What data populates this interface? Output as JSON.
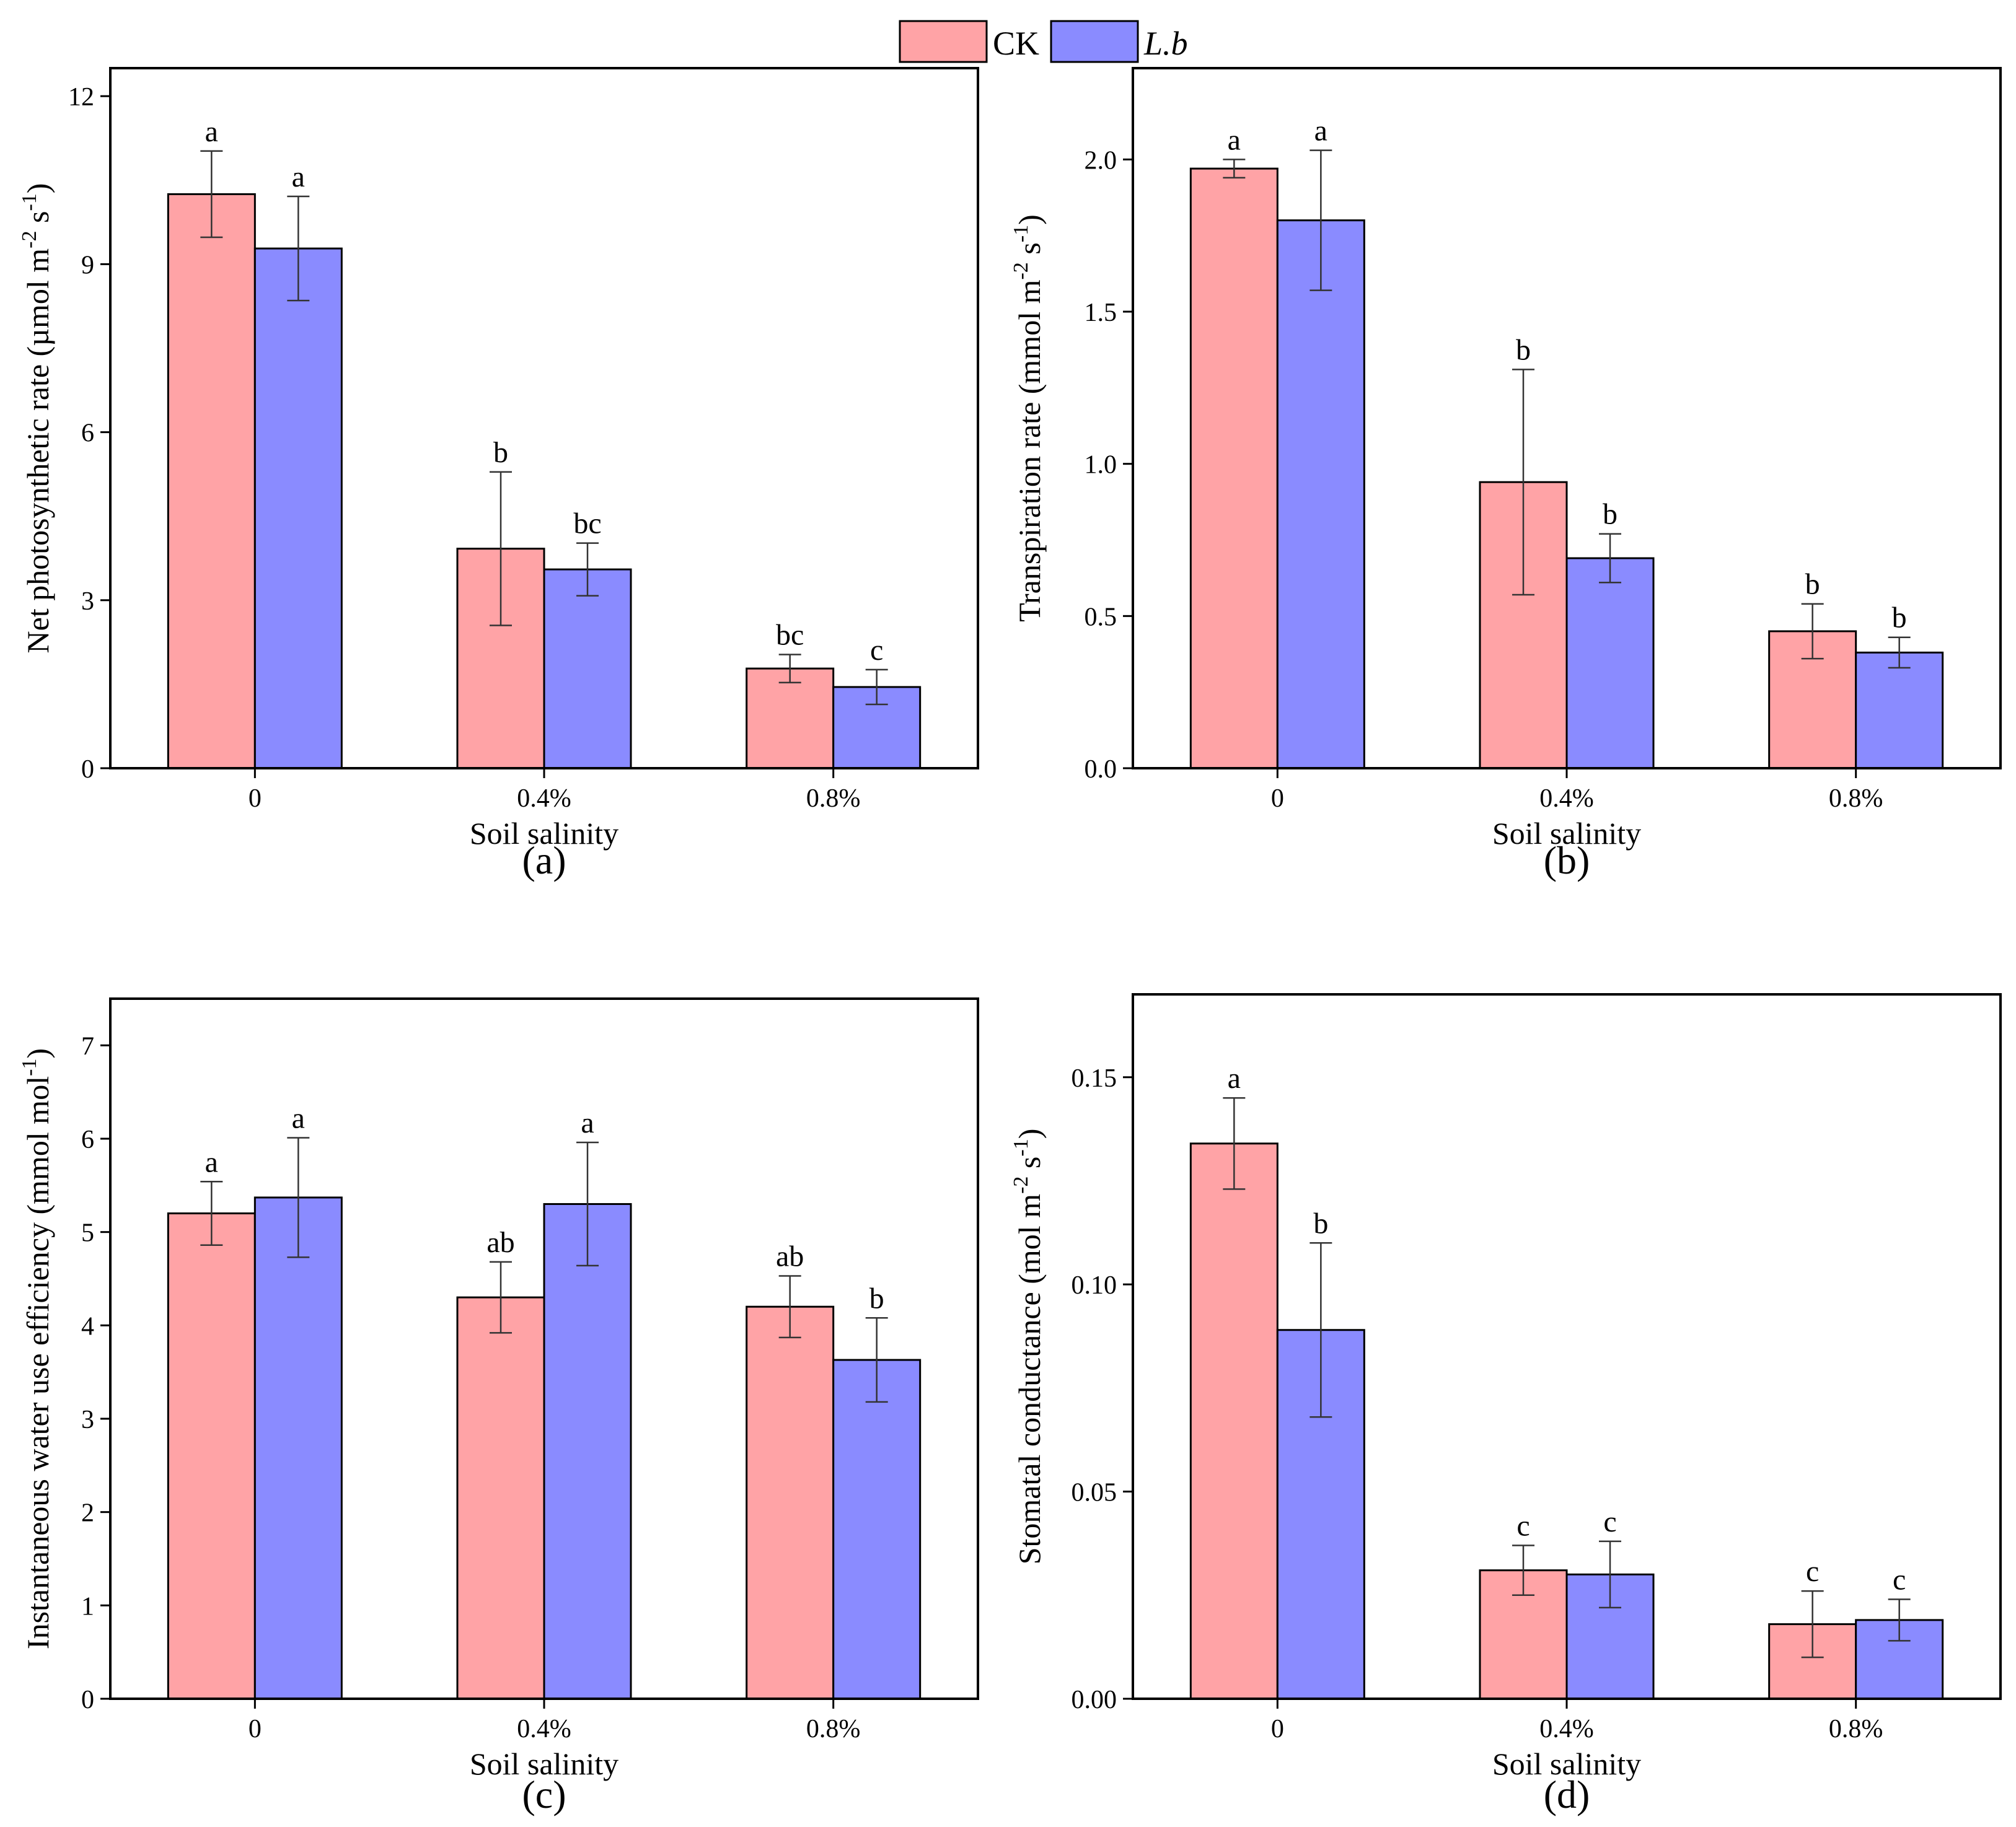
{
  "legend": {
    "entries": [
      {
        "name": "CK",
        "color": "#FFA3A6"
      },
      {
        "name": "L.b",
        "color": "#8A8BFF",
        "italic": true
      }
    ]
  },
  "chart_data": [
    {
      "type": "bar",
      "panel_label": "(a)",
      "xlabel": "Soil salinity",
      "ylabel": "Net photosynthetic rate (µmol m-2 s-1)",
      "ylabel_parts": [
        "Net photosynthetic rate (µmol m",
        "-2",
        " s",
        "-1",
        ")"
      ],
      "categories": [
        "0",
        "0.4%",
        "0.8%"
      ],
      "ylim": [
        0,
        12.5
      ],
      "yticks": [
        0,
        3,
        6,
        9,
        12
      ],
      "ytick_labels": [
        "0",
        "3",
        "6",
        "9",
        "12"
      ],
      "series": [
        {
          "name": "CK",
          "values": [
            10.25,
            3.92,
            1.78
          ],
          "errors": [
            0.77,
            1.37,
            0.25
          ],
          "letters": [
            "a",
            "b",
            "bc"
          ]
        },
        {
          "name": "L.b",
          "values": [
            9.28,
            3.55,
            1.45
          ],
          "errors": [
            0.93,
            0.47,
            0.31
          ],
          "letters": [
            "a",
            "bc",
            "c"
          ]
        }
      ]
    },
    {
      "type": "bar",
      "panel_label": "(b)",
      "xlabel": "Soil salinity",
      "ylabel": "Transpiration rate (mmol m-2 s-1)",
      "ylabel_parts": [
        "Transpiration rate (mmol m",
        "-2",
        " s",
        "-1",
        ")"
      ],
      "categories": [
        "0",
        "0.4%",
        "0.8%"
      ],
      "ylim": [
        0,
        2.3
      ],
      "yticks": [
        0,
        0.5,
        1.0,
        1.5,
        2.0
      ],
      "ytick_labels": [
        "0.0",
        "0.5",
        "1.0",
        "1.5",
        "2.0"
      ],
      "series": [
        {
          "name": "CK",
          "values": [
            1.97,
            0.94,
            0.45
          ],
          "errors": [
            0.03,
            0.37,
            0.09
          ],
          "letters": [
            "a",
            "b",
            "b"
          ]
        },
        {
          "name": "L.b",
          "values": [
            1.8,
            0.69,
            0.38
          ],
          "errors": [
            0.23,
            0.08,
            0.05
          ],
          "letters": [
            "a",
            "b",
            "b"
          ]
        }
      ]
    },
    {
      "type": "bar",
      "panel_label": "(c)",
      "xlabel": "Soil salinity",
      "ylabel": "Instantaneous water use efficiency (mmol mol-1)",
      "ylabel_parts": [
        "Instantaneous water use efficiency (mmol mol",
        "-1",
        ")"
      ],
      "categories": [
        "0",
        "0.4%",
        "0.8%"
      ],
      "ylim": [
        0,
        7.5
      ],
      "yticks": [
        0,
        1,
        2,
        3,
        4,
        5,
        6,
        7
      ],
      "ytick_labels": [
        "0",
        "1",
        "2",
        "3",
        "4",
        "5",
        "6",
        "7"
      ],
      "series": [
        {
          "name": "CK",
          "values": [
            5.2,
            4.3,
            4.2
          ],
          "errors": [
            0.34,
            0.38,
            0.33
          ],
          "letters": [
            "a",
            "ab",
            "ab"
          ]
        },
        {
          "name": "L.b",
          "values": [
            5.37,
            5.3,
            3.63
          ],
          "errors": [
            0.64,
            0.66,
            0.45
          ],
          "letters": [
            "a",
            "a",
            "b"
          ]
        }
      ]
    },
    {
      "type": "bar",
      "panel_label": "(d)",
      "xlabel": "Soil salinity",
      "ylabel": "Stomatal conductance (mol m-2 s-1)",
      "ylabel_parts": [
        "Stomatal conductance (mol m",
        "-2",
        " s",
        "-1",
        ")"
      ],
      "categories": [
        "0",
        "0.4%",
        "0.8%"
      ],
      "ylim": [
        0,
        0.17
      ],
      "yticks": [
        0,
        0.05,
        0.1,
        0.15
      ],
      "ytick_labels": [
        "0.00",
        "0.05",
        "0.10",
        "0.15"
      ],
      "series": [
        {
          "name": "CK",
          "values": [
            0.134,
            0.031,
            0.018
          ],
          "errors": [
            0.011,
            0.006,
            0.008
          ],
          "letters": [
            "a",
            "c",
            "c"
          ]
        },
        {
          "name": "L.b",
          "values": [
            0.089,
            0.03,
            0.019
          ],
          "errors": [
            0.021,
            0.008,
            0.005
          ],
          "letters": [
            "b",
            "c",
            "c"
          ]
        }
      ]
    }
  ]
}
